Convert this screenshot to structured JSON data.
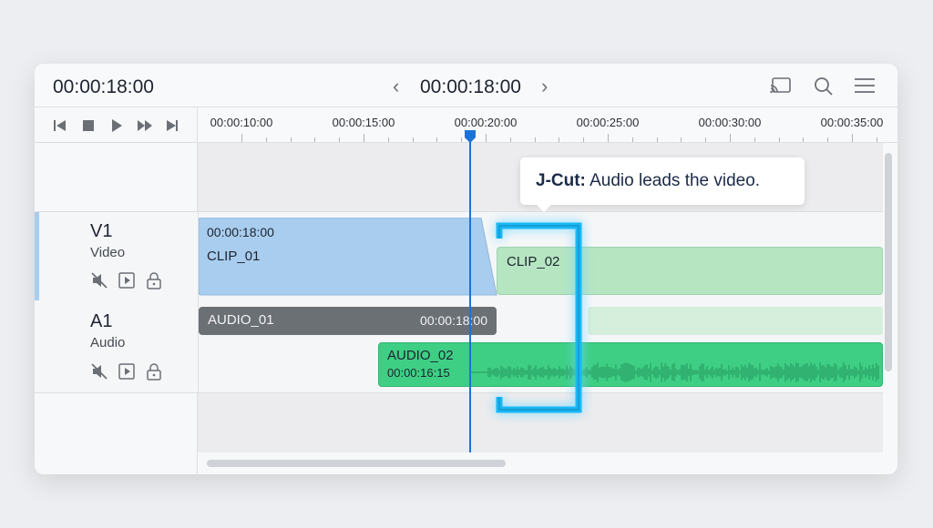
{
  "header": {
    "timecode_left": "00:00:18:00",
    "timecode_center": "00:00:18:00",
    "icons": [
      "cast-icon",
      "search-icon",
      "menu-icon"
    ]
  },
  "transport": {
    "icons": [
      "skip-start-icon",
      "stop-icon",
      "play-icon",
      "fast-forward-icon",
      "skip-end-icon"
    ]
  },
  "ruler": {
    "labels": [
      "00:00:10:00",
      "00:00:15:00",
      "00:00:20:00",
      "00:00:25:00",
      "00:00:30:00",
      "00:00:35:00"
    ]
  },
  "tooltip": {
    "bold": "J-Cut:",
    "text": " Audio leads the video."
  },
  "tracks": [
    {
      "name": "V1",
      "type": "Video"
    },
    {
      "name": "A1",
      "type": "Audio"
    }
  ],
  "clips": {
    "clip01": {
      "timecode": "00:00:18:00",
      "name": "CLIP_01"
    },
    "clip02": {
      "name": "CLIP_02"
    },
    "audio01": {
      "name": "AUDIO_01",
      "timecode": "00:00:18:00"
    },
    "audio02": {
      "name": "AUDIO_02",
      "timecode": "00:00:16:15"
    }
  },
  "colors": {
    "accent": "#1a73d9",
    "video_clip": "#a9cdee",
    "video_clip_2": "#b6e5c2",
    "audio_dark": "#6b7075",
    "audio_green": "#3ecf84",
    "bracket": "#17b8f5"
  }
}
